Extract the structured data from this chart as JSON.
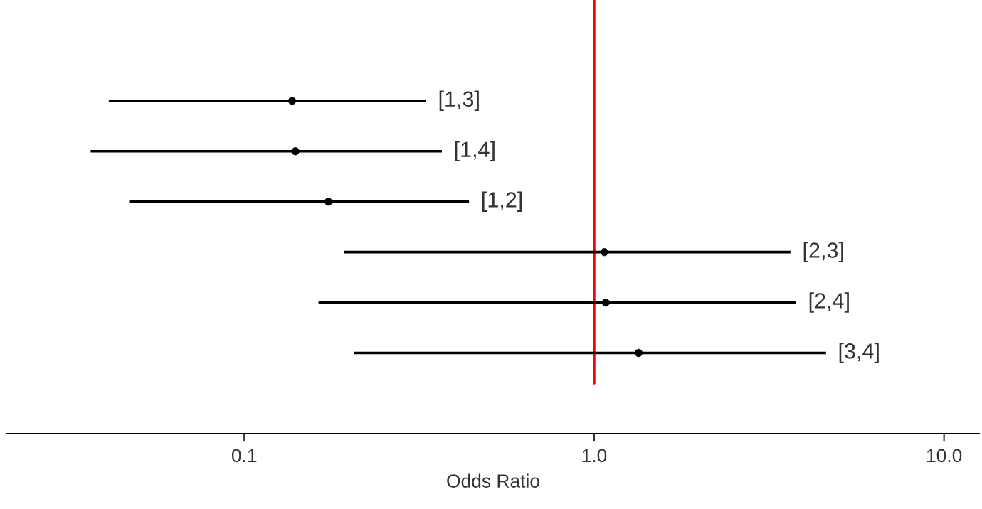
{
  "chart_data": {
    "type": "scatter",
    "orientation": "horizontal",
    "xlabel": "Odds Ratio",
    "log": "x",
    "categories": [
      "[1,3]",
      "[1,4]",
      "[1,2]",
      "[2,3]",
      "[2,4]",
      "[3,4]"
    ],
    "values": [
      0.137,
      0.14,
      0.174,
      1.07,
      1.08,
      1.34
    ],
    "errors": [
      [
        0.041,
        0.331
      ],
      [
        0.0364,
        0.367
      ],
      [
        0.0469,
        0.439
      ],
      [
        0.193,
        3.64
      ],
      [
        0.163,
        3.78
      ],
      [
        0.206,
        4.6
      ]
    ],
    "color": "#000000",
    "marker": "circle",
    "xlim": [
      0.021,
      12.6
    ],
    "xticks": [
      {
        "value": 0.1,
        "label": "0.1"
      },
      {
        "value": 1,
        "label": "1.0"
      },
      {
        "value": 10,
        "label": "10.0"
      }
    ],
    "ref_lines": [
      {
        "axis": "x",
        "value": 1,
        "color": "#ff0000"
      }
    ],
    "grid": false,
    "legend": false
  }
}
